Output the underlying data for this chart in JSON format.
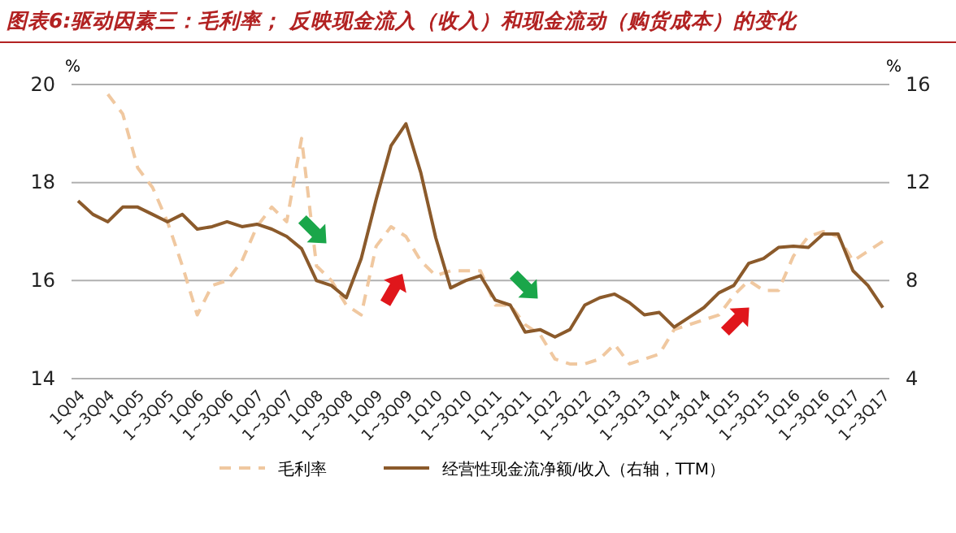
{
  "chart_data": {
    "type": "line",
    "title": "图表6:驱动因素三：毛利率；  反映现金流入（收入）和现金流动（购货成本）的变化",
    "categories": [
      "1Q04",
      null,
      "1~3Q04",
      null,
      "1Q05",
      null,
      "1~3Q05",
      null,
      "1Q06",
      null,
      "1~3Q06",
      null,
      "1Q07",
      null,
      "1~3Q07",
      null,
      "1Q08",
      null,
      "1~3Q08",
      null,
      "1Q09",
      null,
      "1~3Q09",
      null,
      "1Q10",
      null,
      "1~3Q10",
      null,
      "1Q11",
      null,
      "1~3Q11",
      null,
      "1Q12",
      null,
      "1~3Q12",
      null,
      "1Q13",
      null,
      "1~3Q13",
      null,
      "1Q14",
      null,
      "1~3Q14",
      null,
      "1Q15",
      null,
      "1~3Q15",
      null,
      "1Q16",
      null,
      "1~3Q16",
      null,
      "1Q17",
      null,
      "1~3Q17"
    ],
    "series": [
      {
        "name": "毛利率",
        "color": "#f0c8a0",
        "line_style": "dashed",
        "values": [
          null,
          null,
          19.8,
          19.4,
          18.3,
          17.9,
          17.2,
          16.3,
          15.3,
          15.9,
          16.0,
          16.4,
          17.1,
          17.5,
          17.2,
          18.9,
          16.3,
          16.0,
          15.5,
          15.3,
          16.7,
          17.1,
          16.9,
          16.4,
          16.1,
          16.2,
          16.2,
          16.2,
          15.5,
          15.5,
          15.1,
          14.9,
          14.4,
          14.3,
          14.3,
          14.4,
          14.7,
          14.3,
          14.4,
          14.5,
          15.0,
          15.1,
          15.2,
          15.3,
          15.7,
          16.0,
          15.8,
          15.8,
          16.5,
          16.9,
          17.0,
          16.9,
          16.4,
          16.6,
          16.8
        ]
      },
      {
        "name": "经营性现金流净额/收入（右轴，TTM）",
        "color": "#8b5a2b",
        "line_style": "solid",
        "axis": "y2",
        "values": [
          11.25,
          10.7,
          10.4,
          11.0,
          11.0,
          10.7,
          10.4,
          10.7,
          10.1,
          10.2,
          10.4,
          10.2,
          10.3,
          10.1,
          9.8,
          9.3,
          8.0,
          7.8,
          7.3,
          8.9,
          11.3,
          13.5,
          14.4,
          12.4,
          9.75,
          7.7,
          8.0,
          8.2,
          7.2,
          7.0,
          5.9,
          6.0,
          5.7,
          6.0,
          7.0,
          7.3,
          7.45,
          7.1,
          6.6,
          6.7,
          6.1,
          6.5,
          6.9,
          7.5,
          7.8,
          8.7,
          8.9,
          9.35,
          9.4,
          9.35,
          9.9,
          9.9,
          8.4,
          7.8,
          6.9
        ]
      }
    ],
    "ylabel": "%",
    "y2label": "%",
    "ylim": [
      14,
      20
    ],
    "yticks": [
      14,
      16,
      18,
      20
    ],
    "y2lim": [
      4,
      16
    ],
    "y2ticks": [
      4,
      8,
      12,
      16
    ],
    "grid": "y",
    "legend": "bottom"
  }
}
